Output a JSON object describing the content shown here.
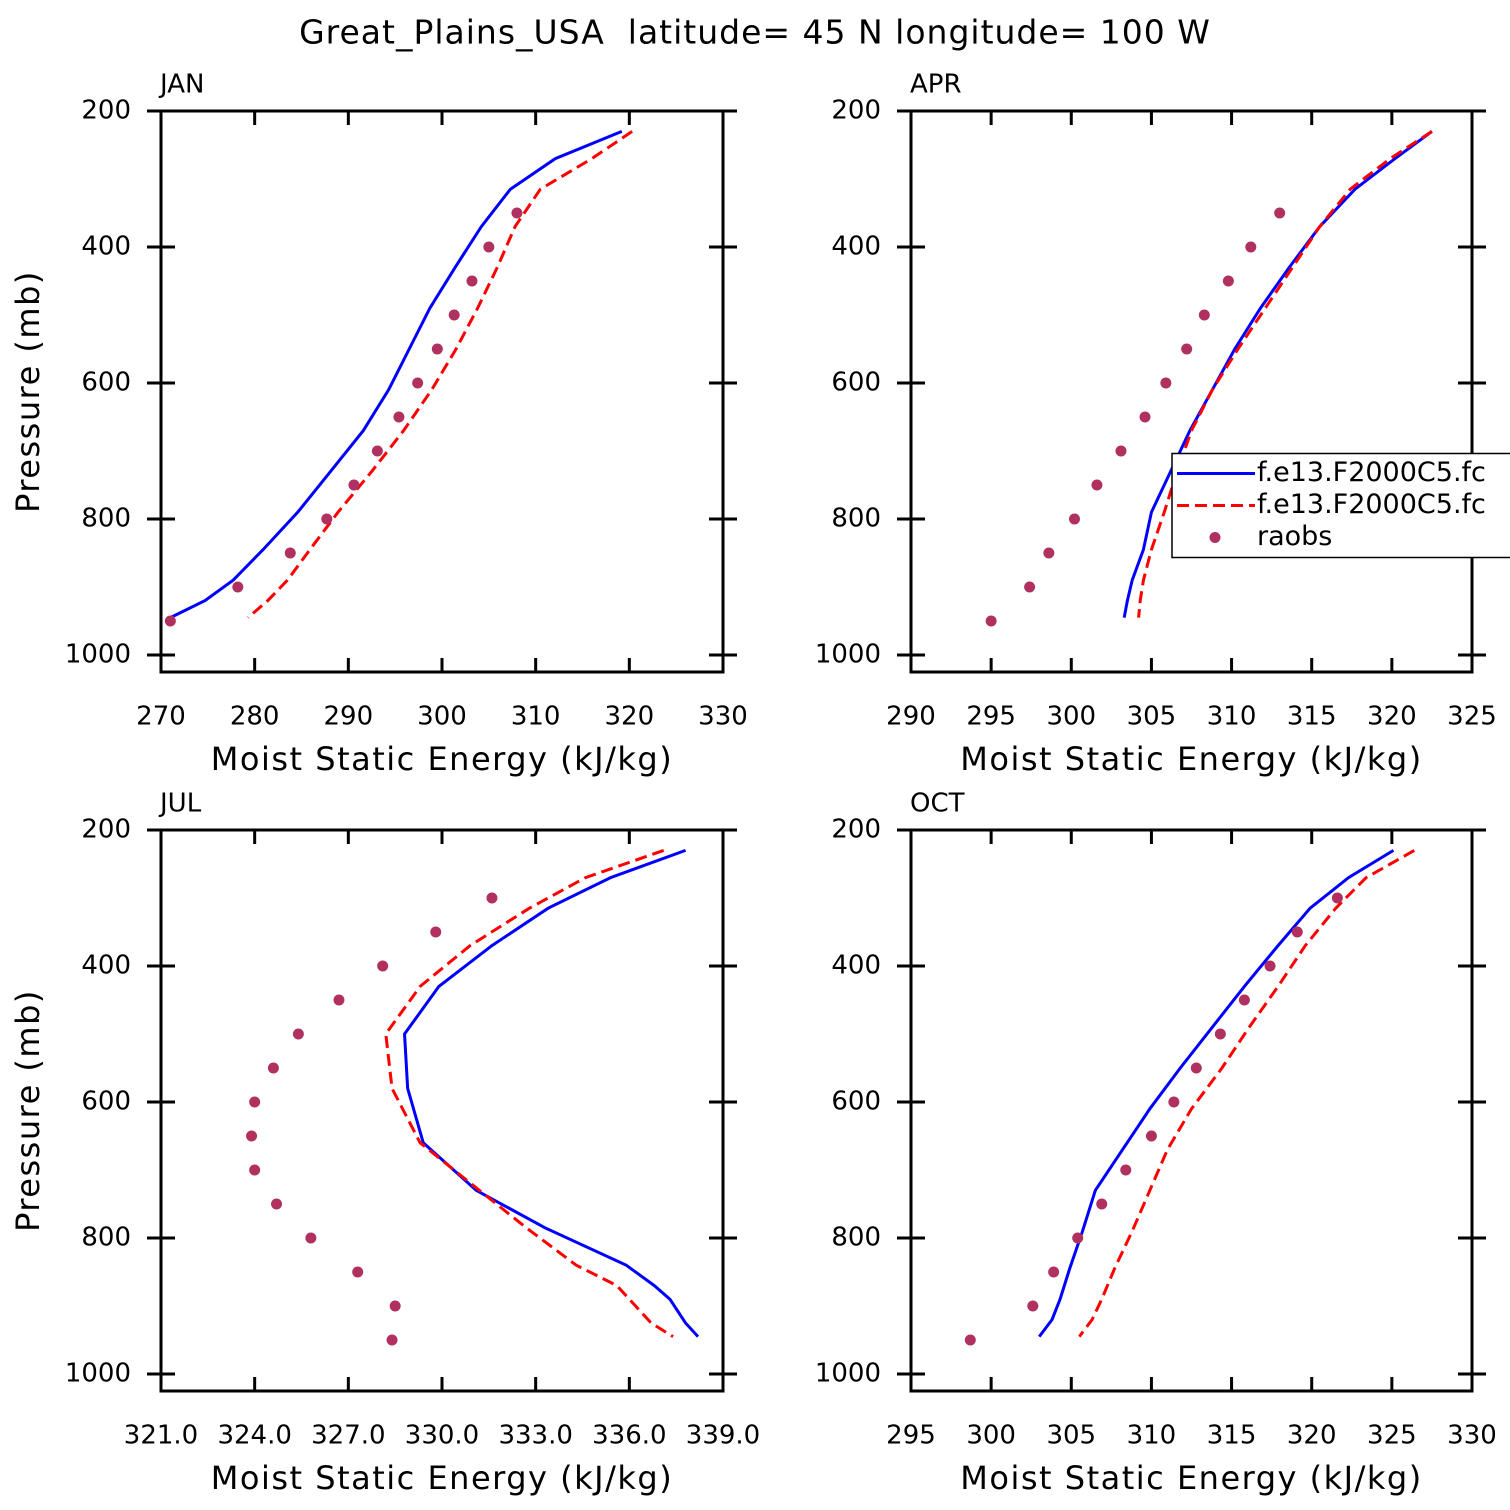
{
  "title": "Great_Plains_USA  latitude= 45 N longitude= 100 W",
  "chart_data": [
    {
      "type": "line",
      "panel_label": "JAN",
      "xlabel": "Moist Static Energy (kJ/kg)",
      "ylabel": "Pressure (mb)",
      "xlim": [
        270,
        330
      ],
      "xticks": [
        270,
        280,
        290,
        300,
        310,
        320,
        330
      ],
      "ylim": [
        1025,
        200
      ],
      "yticks": [
        200,
        400,
        600,
        800,
        1000
      ],
      "series": [
        {
          "color": "#0000ff",
          "style": "solid",
          "x": [
            319.2,
            312.1,
            307.3,
            304.2,
            301.4,
            298.7,
            296.5,
            294.3,
            291.6,
            288.1,
            284.6,
            280.9,
            277.7,
            274.7,
            271.0
          ],
          "y": [
            230,
            270,
            315,
            370,
            430,
            490,
            550,
            610,
            670,
            730,
            790,
            845,
            890,
            920,
            945
          ]
        },
        {
          "color": "#ff0000",
          "style": "dashed",
          "x": [
            320.3,
            316.0,
            310.5,
            307.8,
            305.9,
            303.8,
            301.5,
            298.9,
            295.9,
            292.5,
            288.9,
            285.9,
            283.5,
            281.4,
            279.3
          ],
          "y": [
            230,
            270,
            315,
            370,
            430,
            490,
            550,
            610,
            670,
            730,
            790,
            845,
            890,
            920,
            945
          ]
        },
        {
          "color": "#b03060",
          "style": "dots",
          "x": [
            308.0,
            305.0,
            303.2,
            301.3,
            299.5,
            297.4,
            295.4,
            293.1,
            290.6,
            287.7,
            283.8,
            278.2,
            271.0
          ],
          "y": [
            350,
            400,
            450,
            500,
            550,
            600,
            650,
            700,
            750,
            800,
            850,
            900,
            950
          ]
        }
      ]
    },
    {
      "type": "line",
      "panel_label": "APR",
      "xlabel": "Moist Static Energy (kJ/kg)",
      "xlim": [
        290,
        325
      ],
      "xticks": [
        290,
        295,
        300,
        305,
        310,
        315,
        320,
        325
      ],
      "ylim": [
        1025,
        200
      ],
      "yticks": [
        200,
        400,
        600,
        800,
        1000
      ],
      "legend": "center-right",
      "series": [
        {
          "name": "f.e13.F2000C5.fc",
          "color": "#0000ff",
          "style": "solid",
          "x": [
            322.5,
            320.2,
            317.7,
            315.5,
            313.6,
            311.8,
            310.2,
            308.8,
            307.4,
            306.2,
            305.0,
            304.5,
            303.8,
            303.5,
            303.3
          ],
          "y": [
            230,
            270,
            315,
            370,
            430,
            490,
            550,
            610,
            670,
            730,
            790,
            845,
            890,
            920,
            945
          ]
        },
        {
          "name": "f.e13.F2000C5.fc",
          "color": "#ff0000",
          "style": "dashed",
          "x": [
            322.5,
            319.9,
            317.4,
            315.5,
            313.8,
            312.1,
            310.4,
            308.8,
            307.5,
            306.6,
            305.8,
            305.0,
            304.5,
            304.3,
            304.2
          ],
          "y": [
            230,
            270,
            315,
            370,
            430,
            490,
            550,
            610,
            670,
            730,
            790,
            845,
            890,
            920,
            945
          ]
        },
        {
          "name": "raobs",
          "color": "#b03060",
          "style": "dots",
          "x": [
            313.0,
            311.2,
            309.8,
            308.3,
            307.2,
            305.9,
            304.6,
            303.1,
            301.6,
            300.2,
            298.6,
            297.4,
            295.0
          ],
          "y": [
            350,
            400,
            450,
            500,
            550,
            600,
            650,
            700,
            750,
            800,
            850,
            900,
            950
          ]
        }
      ]
    },
    {
      "type": "line",
      "panel_label": "JUL",
      "xlabel": "Moist Static Energy (kJ/kg)",
      "ylabel": "Pressure (mb)",
      "xlim": [
        321,
        339
      ],
      "xticks": [
        {
          "value": 321,
          "label": "321.0"
        },
        {
          "value": 324,
          "label": "324.0"
        },
        {
          "value": 327,
          "label": "327.0"
        },
        {
          "value": 330,
          "label": "330.0"
        },
        {
          "value": 333,
          "label": "333.0"
        },
        {
          "value": 336,
          "label": "336.0"
        },
        {
          "value": 339,
          "label": "339.0"
        }
      ],
      "ylim": [
        1025,
        200
      ],
      "yticks": [
        200,
        400,
        600,
        800,
        1000
      ],
      "series": [
        {
          "color": "#0000ff",
          "style": "solid",
          "x": [
            337.8,
            335.4,
            333.4,
            331.6,
            329.9,
            328.8,
            328.9,
            329.4,
            331.1,
            333.3,
            335.9,
            336.8,
            337.3,
            337.8,
            338.2
          ],
          "y": [
            230,
            270,
            315,
            370,
            430,
            500,
            580,
            660,
            730,
            785,
            840,
            870,
            890,
            925,
            945
          ]
        },
        {
          "color": "#ff0000",
          "style": "dashed",
          "x": [
            337.1,
            334.6,
            332.8,
            330.9,
            329.3,
            328.2,
            328.4,
            329.3,
            331.2,
            332.7,
            334.3,
            335.6,
            336.0,
            336.7,
            337.4
          ],
          "y": [
            230,
            270,
            315,
            370,
            430,
            500,
            580,
            660,
            730,
            785,
            840,
            870,
            890,
            925,
            945
          ]
        },
        {
          "color": "#b03060",
          "style": "dots",
          "x": [
            331.6,
            329.8,
            328.1,
            326.7,
            325.4,
            324.6,
            324.0,
            323.9,
            324.0,
            324.7,
            325.8,
            327.3,
            328.5,
            328.4
          ],
          "y": [
            300,
            350,
            400,
            450,
            500,
            550,
            600,
            650,
            700,
            750,
            800,
            850,
            900,
            950
          ]
        }
      ]
    },
    {
      "type": "line",
      "panel_label": "OCT",
      "xlabel": "Moist Static Energy (kJ/kg)",
      "xlim": [
        295,
        330
      ],
      "xticks": [
        295,
        300,
        305,
        310,
        315,
        320,
        325,
        330
      ],
      "ylim": [
        1025,
        200
      ],
      "yticks": [
        200,
        400,
        600,
        800,
        1000
      ],
      "series": [
        {
          "color": "#0000ff",
          "style": "solid",
          "x": [
            325.1,
            322.3,
            319.9,
            317.9,
            315.8,
            313.8,
            311.8,
            309.9,
            308.2,
            306.5,
            305.7,
            304.9,
            304.3,
            303.8,
            303.0
          ],
          "y": [
            230,
            270,
            315,
            370,
            430,
            490,
            550,
            610,
            670,
            730,
            790,
            845,
            890,
            920,
            945
          ]
        },
        {
          "color": "#ff0000",
          "style": "dashed",
          "x": [
            326.4,
            323.4,
            321.5,
            319.6,
            317.9,
            316.1,
            314.4,
            312.5,
            311.0,
            309.9,
            308.8,
            307.7,
            306.9,
            306.3,
            305.5
          ],
          "y": [
            230,
            270,
            315,
            370,
            430,
            490,
            550,
            610,
            670,
            730,
            790,
            845,
            890,
            920,
            945
          ]
        },
        {
          "color": "#b03060",
          "style": "dots",
          "x": [
            321.6,
            319.1,
            317.4,
            315.8,
            314.3,
            312.8,
            311.4,
            310.0,
            308.4,
            306.9,
            305.4,
            303.9,
            302.6,
            298.7
          ],
          "y": [
            300,
            350,
            400,
            450,
            500,
            550,
            600,
            650,
            700,
            750,
            800,
            850,
            900,
            950
          ]
        }
      ]
    }
  ]
}
